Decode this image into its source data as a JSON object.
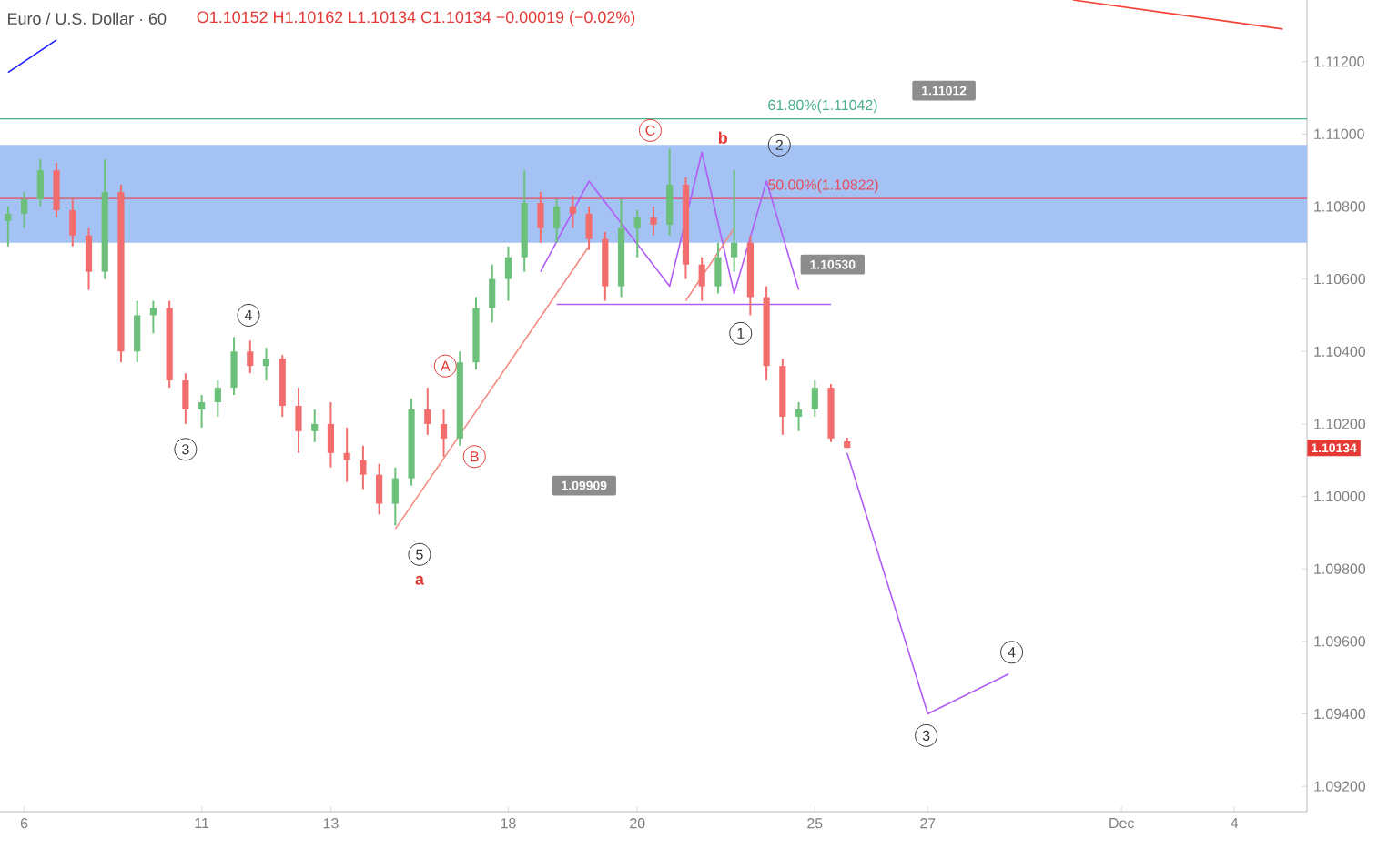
{
  "chart_data": {
    "type": "candlestick",
    "title": "Euro / U.S. Dollar · 60",
    "subtitle": "O1.10152 H1.10162 L1.10134 C1.10134 −0.00019 (−0.02%)",
    "categories": [
      null,
      "6",
      null,
      null,
      null,
      null,
      null,
      null,
      null,
      null,
      null,
      null,
      "11",
      null,
      null,
      null,
      null,
      null,
      null,
      null,
      "13",
      null,
      null,
      null,
      null,
      null,
      null,
      null,
      null,
      null,
      null,
      "18",
      null,
      null,
      null,
      null,
      null,
      null,
      null,
      "20",
      null,
      null,
      null,
      null,
      null,
      null,
      null,
      null,
      null,
      null,
      "25",
      null,
      null,
      null,
      null,
      null,
      null,
      "27",
      null,
      null,
      null,
      null,
      null,
      null,
      null,
      null,
      null,
      null,
      null,
      "Dec",
      null,
      null,
      null,
      null,
      null,
      null,
      "4",
      null,
      null,
      null,
      null
    ],
    "ohlc": [
      [
        1.1076,
        1.108,
        1.1069,
        1.1078
      ],
      [
        1.1078,
        1.1084,
        1.1074,
        1.1082
      ],
      [
        1.1082,
        1.1093,
        1.108,
        1.109
      ],
      [
        1.109,
        1.1092,
        1.1077,
        1.1079
      ],
      [
        1.1079,
        1.1082,
        1.1069,
        1.1072
      ],
      [
        1.1072,
        1.1074,
        1.1057,
        1.1062
      ],
      [
        1.1062,
        1.1093,
        1.106,
        1.1084
      ],
      [
        1.1084,
        1.1086,
        1.1037,
        1.104
      ],
      [
        1.104,
        1.1054,
        1.1037,
        1.105
      ],
      [
        1.105,
        1.1054,
        1.1045,
        1.1052
      ],
      [
        1.1052,
        1.1054,
        1.103,
        1.1032
      ],
      [
        1.1032,
        1.1034,
        1.102,
        1.1024
      ],
      [
        1.1024,
        1.1028,
        1.1019,
        1.1026
      ],
      [
        1.1026,
        1.1032,
        1.1022,
        1.103
      ],
      [
        1.103,
        1.1044,
        1.1028,
        1.104
      ],
      [
        1.104,
        1.1043,
        1.1034,
        1.1036
      ],
      [
        1.1036,
        1.1041,
        1.1032,
        1.1038
      ],
      [
        1.1038,
        1.1039,
        1.1022,
        1.1025
      ],
      [
        1.1025,
        1.103,
        1.1012,
        1.1018
      ],
      [
        1.1018,
        1.1024,
        1.1015,
        1.102
      ],
      [
        1.102,
        1.1026,
        1.1008,
        1.1012
      ],
      [
        1.1012,
        1.1019,
        1.1004,
        1.101
      ],
      [
        1.101,
        1.1014,
        1.1002,
        1.1006
      ],
      [
        1.1006,
        1.1009,
        1.0995,
        1.0998
      ],
      [
        1.0998,
        1.1008,
        1.0992,
        1.1005
      ],
      [
        1.1005,
        1.1027,
        1.1003,
        1.1024
      ],
      [
        1.1024,
        1.103,
        1.1017,
        1.102
      ],
      [
        1.102,
        1.1024,
        1.1011,
        1.1016
      ],
      [
        1.1016,
        1.104,
        1.1014,
        1.1037
      ],
      [
        1.1037,
        1.1055,
        1.1035,
        1.1052
      ],
      [
        1.1052,
        1.1064,
        1.1048,
        1.106
      ],
      [
        1.106,
        1.1069,
        1.1054,
        1.1066
      ],
      [
        1.1066,
        1.109,
        1.1062,
        1.1081
      ],
      [
        1.1081,
        1.1084,
        1.107,
        1.1074
      ],
      [
        1.1074,
        1.1082,
        1.107,
        1.108
      ],
      [
        1.108,
        1.1083,
        1.1074,
        1.1078
      ],
      [
        1.1078,
        1.108,
        1.1068,
        1.1071
      ],
      [
        1.1071,
        1.1073,
        1.1054,
        1.1058
      ],
      [
        1.1058,
        1.1082,
        1.1055,
        1.1074
      ],
      [
        1.1074,
        1.1079,
        1.1066,
        1.1077
      ],
      [
        1.1077,
        1.108,
        1.1072,
        1.1075
      ],
      [
        1.1075,
        1.1096,
        1.1072,
        1.1086
      ],
      [
        1.1086,
        1.1088,
        1.106,
        1.1064
      ],
      [
        1.1064,
        1.1066,
        1.1054,
        1.1058
      ],
      [
        1.1058,
        1.107,
        1.1056,
        1.1066
      ],
      [
        1.1066,
        1.109,
        1.1062,
        1.107
      ],
      [
        1.107,
        1.1072,
        1.105,
        1.1055
      ],
      [
        1.1055,
        1.1058,
        1.1032,
        1.1036
      ],
      [
        1.1036,
        1.1038,
        1.1017,
        1.1022
      ],
      [
        1.1022,
        1.1026,
        1.1018,
        1.1024
      ],
      [
        1.1024,
        1.1032,
        1.1022,
        1.103
      ],
      [
        1.103,
        1.1031,
        1.1015,
        1.1016
      ],
      [
        1.10152,
        1.10162,
        1.10134,
        1.10134
      ],
      null,
      null,
      null,
      null,
      null,
      null,
      null,
      null,
      null,
      null,
      null,
      null,
      null,
      null,
      null,
      null,
      null,
      null,
      null,
      null,
      null,
      null,
      null,
      null,
      null,
      null,
      null,
      null
    ],
    "ylim": [
      1.0913,
      1.1137
    ],
    "yticks": [
      {
        "value": 1.092,
        "label": "1.09200"
      },
      {
        "value": 1.094,
        "label": "1.09400"
      },
      {
        "value": 1.096,
        "label": "1.09600"
      },
      {
        "value": 1.098,
        "label": "1.09800"
      },
      {
        "value": 1.1,
        "label": "1.10000"
      },
      {
        "value": 1.102,
        "label": "1.10200"
      },
      {
        "value": 1.104,
        "label": "1.10400"
      },
      {
        "value": 1.106,
        "label": "1.10600"
      },
      {
        "value": 1.108,
        "label": "1.10800"
      },
      {
        "value": 1.11,
        "label": "1.11000"
      },
      {
        "value": 1.112,
        "label": "1.11200"
      }
    ],
    "bands": [
      {
        "axis": "y",
        "from": 1.107,
        "to": 1.1097,
        "color": "#a4c2f4"
      }
    ],
    "ref_lines": [
      {
        "axis": "y",
        "value": 1.11042,
        "label": "61.80%(1.11042)",
        "color": "#4caf8c"
      },
      {
        "axis": "y",
        "value": 1.10822,
        "label": "50.00%(1.10822)",
        "color": "#e84a5f"
      }
    ],
    "series": [
      {
        "type": "line",
        "color": "#b05cf5",
        "values": [
          null,
          null,
          null,
          null,
          null,
          null,
          null,
          null,
          null,
          null,
          null,
          null,
          null,
          null,
          null,
          null,
          null,
          null,
          null,
          null,
          null,
          null,
          null,
          null,
          null,
          null,
          null,
          null,
          null,
          null,
          null,
          null,
          null,
          1.1062,
          null,
          null,
          1.1087,
          null,
          null,
          null,
          null,
          1.1058,
          null,
          1.1095,
          null,
          1.1056,
          null,
          1.1087,
          null,
          1.1057,
          null,
          null,
          null,
          null,
          null,
          null,
          null,
          null,
          null,
          null,
          null,
          null,
          null,
          null,
          null,
          null,
          null,
          null,
          null,
          null,
          null,
          null,
          null,
          null,
          null,
          null,
          null,
          null,
          null,
          null,
          null
        ]
      },
      {
        "type": "line",
        "color": "#b05cf5",
        "values": [
          null,
          null,
          null,
          null,
          null,
          null,
          null,
          null,
          null,
          null,
          null,
          null,
          null,
          null,
          null,
          null,
          null,
          null,
          null,
          null,
          null,
          null,
          null,
          null,
          null,
          null,
          null,
          null,
          null,
          null,
          null,
          null,
          null,
          null,
          1.1053,
          null,
          null,
          null,
          null,
          null,
          null,
          null,
          null,
          null,
          null,
          null,
          null,
          null,
          null,
          null,
          null,
          1.1053,
          null,
          null,
          null,
          null,
          null,
          null,
          null,
          null,
          null,
          null,
          null,
          null,
          null,
          null,
          null,
          null,
          null,
          null,
          null,
          null,
          null,
          null,
          null,
          null,
          null,
          null,
          null,
          null,
          null
        ]
      },
      {
        "type": "line",
        "color": "#b05cf5",
        "values": [
          null,
          null,
          null,
          null,
          null,
          null,
          null,
          null,
          null,
          null,
          null,
          null,
          null,
          null,
          null,
          null,
          null,
          null,
          null,
          null,
          null,
          null,
          null,
          null,
          null,
          null,
          null,
          null,
          null,
          null,
          null,
          null,
          null,
          null,
          null,
          null,
          null,
          null,
          null,
          null,
          null,
          null,
          null,
          null,
          null,
          null,
          null,
          null,
          null,
          null,
          null,
          null,
          1.1012,
          null,
          null,
          null,
          null,
          1.094,
          null,
          null,
          null,
          null,
          1.0951,
          null,
          null,
          null,
          null,
          null,
          null,
          null,
          null,
          null,
          null,
          null,
          null,
          null,
          null,
          null,
          null,
          null,
          null
        ]
      },
      {
        "type": "line",
        "color": "#f28b82",
        "values": [
          null,
          null,
          null,
          null,
          null,
          null,
          null,
          null,
          null,
          null,
          null,
          null,
          null,
          null,
          null,
          null,
          null,
          null,
          null,
          null,
          null,
          null,
          null,
          null,
          1.0991,
          null,
          null,
          null,
          null,
          null,
          null,
          null,
          null,
          null,
          null,
          null,
          1.1069,
          null,
          null,
          null,
          null,
          null,
          null,
          null,
          null,
          null,
          null,
          null,
          null,
          null,
          null,
          null,
          null,
          null,
          null,
          null,
          null,
          null,
          null,
          null,
          null,
          null,
          null,
          null,
          null,
          null,
          null,
          null,
          null,
          null,
          null,
          null,
          null,
          null,
          null,
          null,
          null,
          null,
          null,
          null,
          null
        ]
      },
      {
        "type": "line",
        "color": "#f28b82",
        "values": [
          null,
          null,
          null,
          null,
          null,
          null,
          null,
          null,
          null,
          null,
          null,
          null,
          null,
          null,
          null,
          null,
          null,
          null,
          null,
          null,
          null,
          null,
          null,
          null,
          null,
          null,
          null,
          null,
          null,
          null,
          null,
          null,
          null,
          null,
          null,
          null,
          null,
          null,
          null,
          null,
          null,
          null,
          1.1054,
          null,
          null,
          1.1074,
          null,
          null,
          null,
          null,
          null,
          null,
          null,
          null,
          null,
          null,
          null,
          null,
          null,
          null,
          null,
          null,
          null,
          null,
          null,
          null,
          null,
          null,
          null,
          null,
          null,
          null,
          null,
          null,
          null,
          null,
          null,
          null,
          null,
          null,
          null
        ]
      },
      {
        "type": "line",
        "color": "#1a1aff",
        "values": [
          1.1117,
          null,
          null,
          1.1126,
          null,
          null,
          null,
          null,
          null,
          null,
          null,
          null,
          null,
          null,
          null,
          null,
          null,
          null,
          null,
          null,
          null,
          null,
          null,
          null,
          null,
          null,
          null,
          null,
          null,
          null,
          null,
          null,
          null,
          null,
          null,
          null,
          null,
          null,
          null,
          null,
          null,
          null,
          null,
          null,
          null,
          null,
          null,
          null,
          null,
          null,
          null,
          null,
          null,
          null,
          null,
          null,
          null,
          null,
          null,
          null,
          null,
          null,
          null,
          null,
          null,
          null,
          null,
          null,
          null,
          null,
          null,
          null,
          null,
          null,
          null,
          null,
          null,
          null,
          null,
          null,
          null
        ]
      },
      {
        "type": "line",
        "color": "#f44336",
        "values": [
          null,
          null,
          null,
          null,
          null,
          null,
          null,
          null,
          null,
          null,
          null,
          null,
          null,
          null,
          null,
          null,
          null,
          null,
          null,
          null,
          null,
          null,
          null,
          null,
          null,
          null,
          null,
          null,
          null,
          null,
          null,
          null,
          null,
          null,
          null,
          null,
          null,
          null,
          null,
          null,
          null,
          null,
          null,
          null,
          null,
          null,
          null,
          null,
          null,
          null,
          null,
          null,
          null,
          null,
          null,
          null,
          null,
          null,
          null,
          null,
          null,
          null,
          null,
          null,
          null,
          null,
          1.1137,
          null,
          null,
          null,
          null,
          null,
          null,
          null,
          null,
          null,
          null,
          null,
          null,
          1.1129,
          null
        ]
      }
    ],
    "annotations": [
      "3",
      "4",
      "5",
      "a",
      "A",
      "B",
      "C",
      "b",
      "2",
      "1",
      "3",
      "4",
      "1.11012",
      "1.10530",
      "1.09909",
      "1.10134"
    ]
  }
}
